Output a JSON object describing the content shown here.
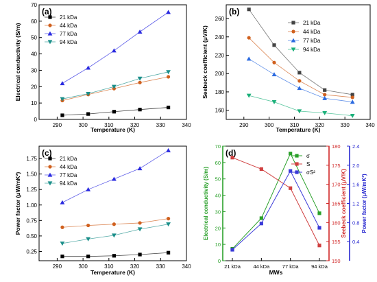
{
  "chart_data": [
    {
      "panel": "(a)",
      "type": "line",
      "xlabel": "Temperature (K)",
      "ylabel": "Electrical conductivity (S/m)",
      "xlim": [
        283,
        340
      ],
      "ylim": [
        0,
        70
      ],
      "xticks": [
        290,
        300,
        310,
        320,
        330,
        340
      ],
      "yticks": [
        0,
        10,
        20,
        30,
        40,
        50,
        60,
        70
      ],
      "legend": "top-left",
      "x": [
        292,
        302,
        312,
        322,
        333
      ],
      "series": [
        {
          "name": "21 kDa",
          "marker": "square",
          "color": "#000000",
          "values": [
            2.5,
            3.3,
            4.7,
            6.0,
            7.3
          ]
        },
        {
          "name": "44 kDa",
          "marker": "circle",
          "color": "#d0601e",
          "values": [
            11.5,
            15.2,
            18.8,
            22.5,
            26.0
          ]
        },
        {
          "name": "77 kDa",
          "marker": "triangle-up",
          "color": "#2a2ae0",
          "values": [
            22.0,
            31.5,
            42.0,
            53.5,
            65.5
          ]
        },
        {
          "name": "94 kDa",
          "marker": "triangle-down",
          "color": "#1b8f8a",
          "values": [
            12.5,
            15.7,
            20.0,
            25.0,
            29.0
          ]
        }
      ]
    },
    {
      "panel": "(b)",
      "type": "line",
      "xlabel": "Temperature (K)",
      "ylabel": "Seebeck coefficient (μV/K)",
      "xlim": [
        283,
        340
      ],
      "ylim": [
        150,
        275
      ],
      "xticks": [
        290,
        300,
        310,
        320,
        330,
        340
      ],
      "yticks": [
        160,
        180,
        200,
        220,
        240,
        260
      ],
      "legend": "top-right",
      "x": [
        292,
        302,
        312,
        322,
        333
      ],
      "series": [
        {
          "name": "21 kDa",
          "marker": "square",
          "color": "#444444",
          "values": [
            270,
            231,
            201,
            182,
            177
          ]
        },
        {
          "name": "44 kDa",
          "marker": "circle",
          "color": "#d0601e",
          "values": [
            239,
            212,
            192,
            177,
            174
          ]
        },
        {
          "name": "77 kDa",
          "marker": "triangle-up",
          "color": "#2a6ae0",
          "values": [
            216,
            199,
            184,
            173,
            169
          ]
        },
        {
          "name": "94 kDa",
          "marker": "triangle-down",
          "color": "#1bb07a",
          "values": [
            176,
            169,
            159,
            157,
            154
          ]
        }
      ]
    },
    {
      "panel": "(c)",
      "type": "line",
      "xlabel": "Temperature (K)",
      "ylabel": "Power factor (μW/mK²)",
      "xlim": [
        283,
        340
      ],
      "ylim": [
        0.1,
        1.95
      ],
      "xticks": [
        290,
        300,
        310,
        320,
        330,
        340
      ],
      "yticks": [
        0.25,
        0.5,
        0.75,
        1.0,
        1.25,
        1.5,
        1.75
      ],
      "ytick_labels": [
        "0.25",
        "0.50",
        "0.75",
        "1.00",
        "1.25",
        "1.50",
        "1.75"
      ],
      "legend": "top-left",
      "x": [
        292,
        302,
        312,
        322,
        333
      ],
      "series": [
        {
          "name": "21 kDa",
          "marker": "square",
          "color": "#000000",
          "values": [
            0.17,
            0.17,
            0.18,
            0.2,
            0.23
          ]
        },
        {
          "name": "44 kDa",
          "marker": "circle",
          "color": "#d0601e",
          "values": [
            0.64,
            0.67,
            0.69,
            0.71,
            0.78
          ]
        },
        {
          "name": "77 kDa",
          "marker": "triangle-up",
          "color": "#2a2ae0",
          "values": [
            1.04,
            1.25,
            1.42,
            1.59,
            1.88
          ]
        },
        {
          "name": "94 kDa",
          "marker": "triangle-down",
          "color": "#1b8f8a",
          "values": [
            0.38,
            0.45,
            0.51,
            0.61,
            0.69
          ]
        }
      ]
    },
    {
      "panel": "(d)",
      "type": "line",
      "xlabel": "MWs",
      "categories": [
        "21 kDa",
        "44 kDa",
        "77 kDa",
        "94 kDa"
      ],
      "axes": [
        {
          "label": "Electrical conductivity (S/m)",
          "color": "#2aa02a",
          "range": [
            0,
            70
          ],
          "ticks": [
            0,
            10,
            20,
            30,
            40,
            50,
            60,
            70
          ]
        },
        {
          "label": "Seebeck coefficient (μV/K)",
          "color": "#d02828",
          "range": [
            150,
            180
          ],
          "ticks": [
            150,
            155,
            160,
            165,
            170,
            175,
            180
          ]
        },
        {
          "label": "Power factor (μW/mK²)",
          "color": "#2828d0",
          "range": [
            0,
            2.4
          ],
          "ticks": [
            0.4,
            0.8,
            1.2,
            1.6,
            2.0,
            2.4
          ],
          "tick_labels": [
            "0.4",
            "0.8",
            "1.2",
            "1.6",
            "2.0",
            "2.4"
          ]
        }
      ],
      "legend": "top-right",
      "series": [
        {
          "name": "σ",
          "axis": 0,
          "marker": "square",
          "color": "#2aa02a",
          "values": [
            7.3,
            26.0,
            65.5,
            29.0
          ]
        },
        {
          "name": "S",
          "axis": 1,
          "marker": "square",
          "color": "#d04040",
          "values": [
            177,
            174,
            169,
            154
          ]
        },
        {
          "name": "σS²",
          "axis": 2,
          "marker": "square",
          "color": "#3a3ad8",
          "values": [
            0.23,
            0.78,
            1.88,
            0.69
          ]
        }
      ]
    }
  ]
}
